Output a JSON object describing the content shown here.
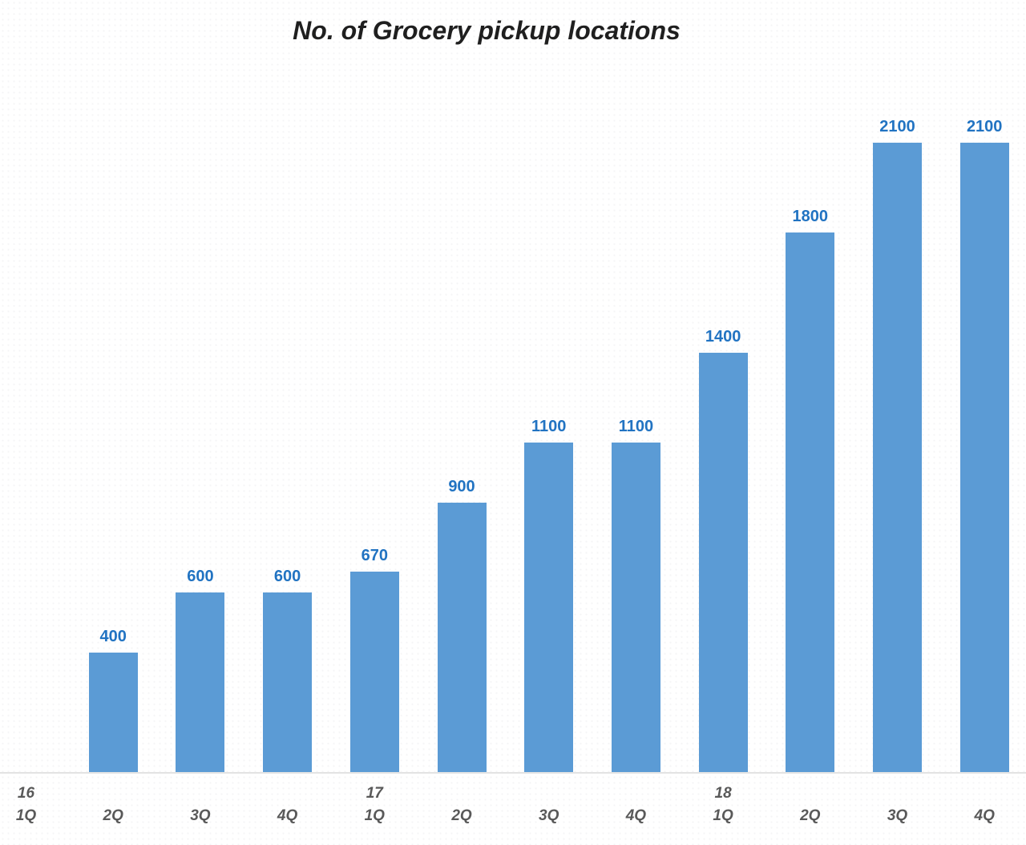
{
  "chart_data": {
    "type": "bar",
    "title": "No. of Grocery pickup locations",
    "categories": [
      "1Q",
      "2Q",
      "3Q",
      "4Q",
      "1Q",
      "2Q",
      "3Q",
      "4Q",
      "1Q",
      "2Q",
      "3Q",
      "4Q"
    ],
    "year_row": [
      "16",
      "",
      "",
      "",
      "17",
      "",
      "",
      "",
      "18",
      "",
      "",
      ""
    ],
    "values": [
      null,
      400,
      600,
      600,
      670,
      900,
      1100,
      1100,
      1400,
      1800,
      2100,
      2100
    ],
    "data_labels": [
      "",
      "400",
      "600",
      "600",
      "670",
      "900",
      "1100",
      "1100",
      "1400",
      "1800",
      "2100",
      "2100"
    ],
    "xlabel": "",
    "ylabel": "",
    "ylim": [
      0,
      2200
    ],
    "grid": false,
    "legend": false,
    "bar_color": "#5B9BD5",
    "label_color": "#2173C2",
    "axis_line_color": "#E3E3E3",
    "tick_color": "#595959",
    "title_color": "#1F1F1F"
  }
}
